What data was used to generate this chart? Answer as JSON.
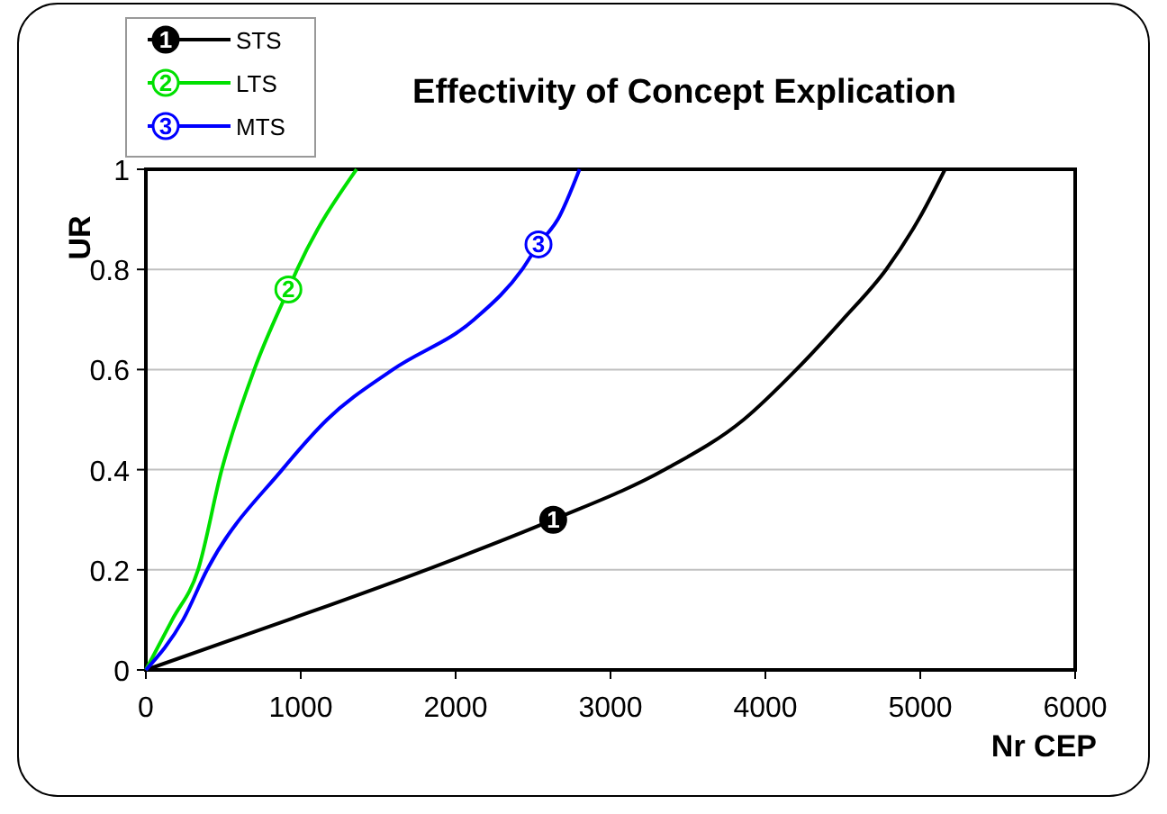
{
  "chart_data": {
    "type": "line",
    "title": "Effectivity of Concept Explication",
    "xlabel": "Nr CEP",
    "ylabel": "UR",
    "xlim": [
      0,
      6000
    ],
    "xticks": [
      0,
      1000,
      2000,
      3000,
      4000,
      5000,
      6000
    ],
    "ylim": [
      0,
      1
    ],
    "yticks": [
      0,
      0.2,
      0.4,
      0.6,
      0.8,
      1
    ],
    "grid": "y",
    "legend": "top left",
    "line_style": "solid",
    "series": [
      {
        "name": "STS",
        "color": "#000000",
        "x": [
          0,
          920,
          1810,
          2630,
          3350,
          3860,
          4200,
          4500,
          4780,
          4990,
          5160
        ],
        "values": [
          0,
          0.1,
          0.2,
          0.3,
          0.4,
          0.5,
          0.6,
          0.7,
          0.8,
          0.9,
          1
        ]
      },
      {
        "name": "LTS",
        "color": "#00e000",
        "x": [
          0,
          170,
          337,
          490,
          700,
          920,
          977,
          1360
        ],
        "values": [
          0,
          0.1,
          0.2,
          0.4,
          0.6,
          0.76,
          0.8,
          1
        ]
      },
      {
        "name": "MTS",
        "color": "#0000ff",
        "x": [
          0,
          240,
          395,
          880,
          1170,
          1595,
          2120,
          2430,
          2535,
          2660,
          2800
        ],
        "values": [
          0,
          0.1,
          0.2,
          0.4,
          0.5,
          0.6,
          0.7,
          0.8,
          0.85,
          0.9,
          1
        ]
      }
    ],
    "annotations": [
      {
        "text": "1",
        "x": 2630,
        "y": 0.3
      },
      {
        "text": "2",
        "x": 920,
        "y": 0.76
      },
      {
        "text": "3",
        "x": 2535,
        "y": 0.85
      }
    ]
  }
}
